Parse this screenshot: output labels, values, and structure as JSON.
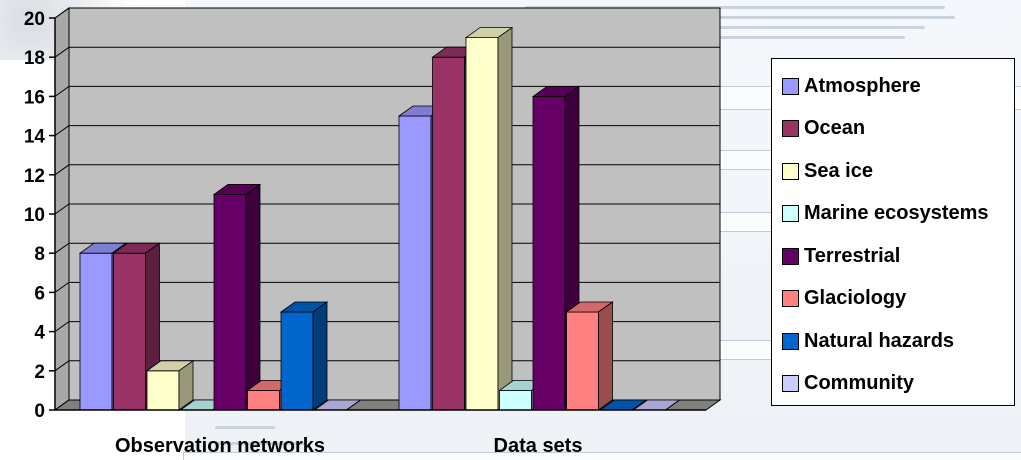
{
  "chart_data": {
    "type": "bar",
    "categories": [
      "Observation networks",
      "Data sets"
    ],
    "series": [
      {
        "name": "Atmosphere",
        "color": "#9999ff",
        "values": [
          8,
          15
        ]
      },
      {
        "name": "Ocean",
        "color": "#993366",
        "values": [
          8,
          18
        ]
      },
      {
        "name": "Sea ice",
        "color": "#ffffcc",
        "values": [
          2,
          19
        ]
      },
      {
        "name": "Marine ecosystems",
        "color": "#ccffff",
        "values": [
          0,
          1
        ]
      },
      {
        "name": "Terrestrial",
        "color": "#660066",
        "values": [
          11,
          16
        ]
      },
      {
        "name": "Glaciology",
        "color": "#ff8080",
        "values": [
          1,
          5
        ]
      },
      {
        "name": "Natural hazards",
        "color": "#0066cc",
        "values": [
          5,
          0
        ]
      },
      {
        "name": "Community",
        "color": "#ccccff",
        "values": [
          0,
          0
        ]
      }
    ],
    "yticks": [
      0,
      2,
      4,
      6,
      8,
      10,
      12,
      14,
      16,
      18,
      20
    ],
    "ylim": [
      0,
      20
    ],
    "grid": true,
    "legend_position": "right",
    "style": "3d-clustered-bar"
  }
}
